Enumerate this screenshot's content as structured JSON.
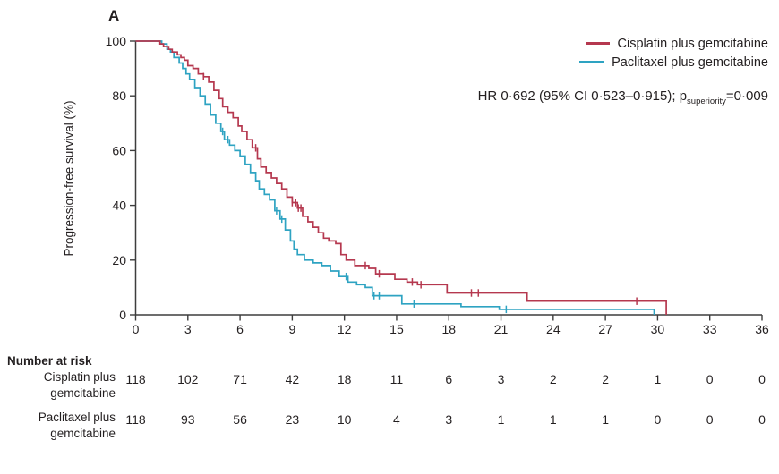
{
  "panel_label": "A",
  "hr_annotation": {
    "prefix": "HR 0·692 (95% CI 0·523–0·915); p",
    "sub": "superiority",
    "suffix": "=0·009"
  },
  "chart_data": {
    "type": "line",
    "subtype": "kaplan-meier-step",
    "panel": "A",
    "title": "",
    "xlabel": "",
    "ylabel": "Progression-free survival (%)",
    "xlim": [
      0,
      36
    ],
    "ylim": [
      0,
      100
    ],
    "xticks": [
      0,
      3,
      6,
      9,
      12,
      15,
      18,
      21,
      24,
      27,
      30,
      33,
      36
    ],
    "yticks": [
      0,
      20,
      40,
      60,
      80,
      100
    ],
    "grid": false,
    "legend_position": "top-right",
    "annotation": "HR 0·692 (95% CI 0·523–0·915); p(superiority)=0·009",
    "series": [
      {
        "name": "Cisplatin plus gemcitabine",
        "color": "#b5384f",
        "points": [
          [
            0,
            100
          ],
          [
            1.2,
            100
          ],
          [
            1.4,
            99
          ],
          [
            1.6,
            98
          ],
          [
            1.9,
            97
          ],
          [
            2.1,
            96
          ],
          [
            2.4,
            95
          ],
          [
            2.6,
            94
          ],
          [
            2.8,
            93
          ],
          [
            3.0,
            91
          ],
          [
            3.3,
            90
          ],
          [
            3.6,
            88
          ],
          [
            3.9,
            87
          ],
          [
            4.2,
            85
          ],
          [
            4.5,
            82
          ],
          [
            4.8,
            79
          ],
          [
            5.0,
            76
          ],
          [
            5.3,
            74
          ],
          [
            5.6,
            72
          ],
          [
            5.9,
            69
          ],
          [
            6.1,
            67
          ],
          [
            6.4,
            64
          ],
          [
            6.7,
            61
          ],
          [
            7.0,
            57
          ],
          [
            7.2,
            54
          ],
          [
            7.5,
            52
          ],
          [
            7.8,
            50
          ],
          [
            8.1,
            48
          ],
          [
            8.4,
            46
          ],
          [
            8.7,
            43
          ],
          [
            9.0,
            41
          ],
          [
            9.3,
            39
          ],
          [
            9.6,
            36
          ],
          [
            9.9,
            34
          ],
          [
            10.2,
            32
          ],
          [
            10.5,
            30
          ],
          [
            10.8,
            28
          ],
          [
            11.1,
            27
          ],
          [
            11.5,
            26
          ],
          [
            11.8,
            22
          ],
          [
            12.1,
            20
          ],
          [
            12.6,
            18
          ],
          [
            13.4,
            17
          ],
          [
            13.8,
            15
          ],
          [
            14.9,
            13
          ],
          [
            15.6,
            12
          ],
          [
            16.2,
            11
          ],
          [
            17.9,
            8
          ],
          [
            22.5,
            5
          ],
          [
            30.5,
            5
          ],
          [
            30.5,
            0
          ]
        ],
        "censor_times": [
          3.9,
          6.9,
          9.0,
          9.2,
          9.35,
          9.5,
          13.2,
          14.0,
          15.9,
          16.4,
          19.3,
          19.7,
          28.8
        ]
      },
      {
        "name": "Paclitaxel plus gemcitabine",
        "color": "#2ea3c2",
        "points": [
          [
            0,
            100
          ],
          [
            1.3,
            100
          ],
          [
            1.5,
            99
          ],
          [
            1.8,
            97
          ],
          [
            2.0,
            96
          ],
          [
            2.2,
            94
          ],
          [
            2.5,
            92
          ],
          [
            2.7,
            90
          ],
          [
            2.9,
            88
          ],
          [
            3.1,
            86
          ],
          [
            3.4,
            83
          ],
          [
            3.7,
            80
          ],
          [
            4.0,
            77
          ],
          [
            4.3,
            73
          ],
          [
            4.6,
            70
          ],
          [
            4.9,
            67
          ],
          [
            5.1,
            64
          ],
          [
            5.4,
            62
          ],
          [
            5.7,
            60
          ],
          [
            6.0,
            58
          ],
          [
            6.3,
            55
          ],
          [
            6.6,
            52
          ],
          [
            6.9,
            49
          ],
          [
            7.1,
            46
          ],
          [
            7.4,
            44
          ],
          [
            7.7,
            42
          ],
          [
            8.0,
            38
          ],
          [
            8.3,
            35
          ],
          [
            8.6,
            31
          ],
          [
            8.9,
            27
          ],
          [
            9.1,
            24
          ],
          [
            9.3,
            22
          ],
          [
            9.7,
            20
          ],
          [
            10.2,
            19
          ],
          [
            10.7,
            18
          ],
          [
            11.2,
            16
          ],
          [
            11.7,
            14
          ],
          [
            12.2,
            12
          ],
          [
            12.7,
            11
          ],
          [
            13.2,
            10
          ],
          [
            13.6,
            7
          ],
          [
            15.3,
            4
          ],
          [
            18.7,
            3
          ],
          [
            20.9,
            2
          ],
          [
            29.8,
            2
          ],
          [
            29.8,
            0
          ]
        ],
        "censor_times": [
          5.0,
          5.3,
          8.1,
          8.4,
          12.1,
          13.7,
          14.0,
          16.0,
          21.3
        ]
      }
    ]
  },
  "number_at_risk": {
    "heading": "Number at risk",
    "timepoints": [
      0,
      3,
      6,
      9,
      12,
      15,
      18,
      21,
      24,
      27,
      30,
      33,
      36
    ],
    "rows": [
      {
        "label_line1": "Cisplatin plus",
        "label_line2": "gemcitabine",
        "values": [
          118,
          102,
          71,
          42,
          18,
          11,
          6,
          3,
          2,
          2,
          1,
          0,
          0
        ]
      },
      {
        "label_line1": "Paclitaxel plus",
        "label_line2": "gemcitabine",
        "values": [
          118,
          93,
          56,
          23,
          10,
          4,
          3,
          1,
          1,
          1,
          0,
          0,
          0
        ]
      }
    ]
  }
}
